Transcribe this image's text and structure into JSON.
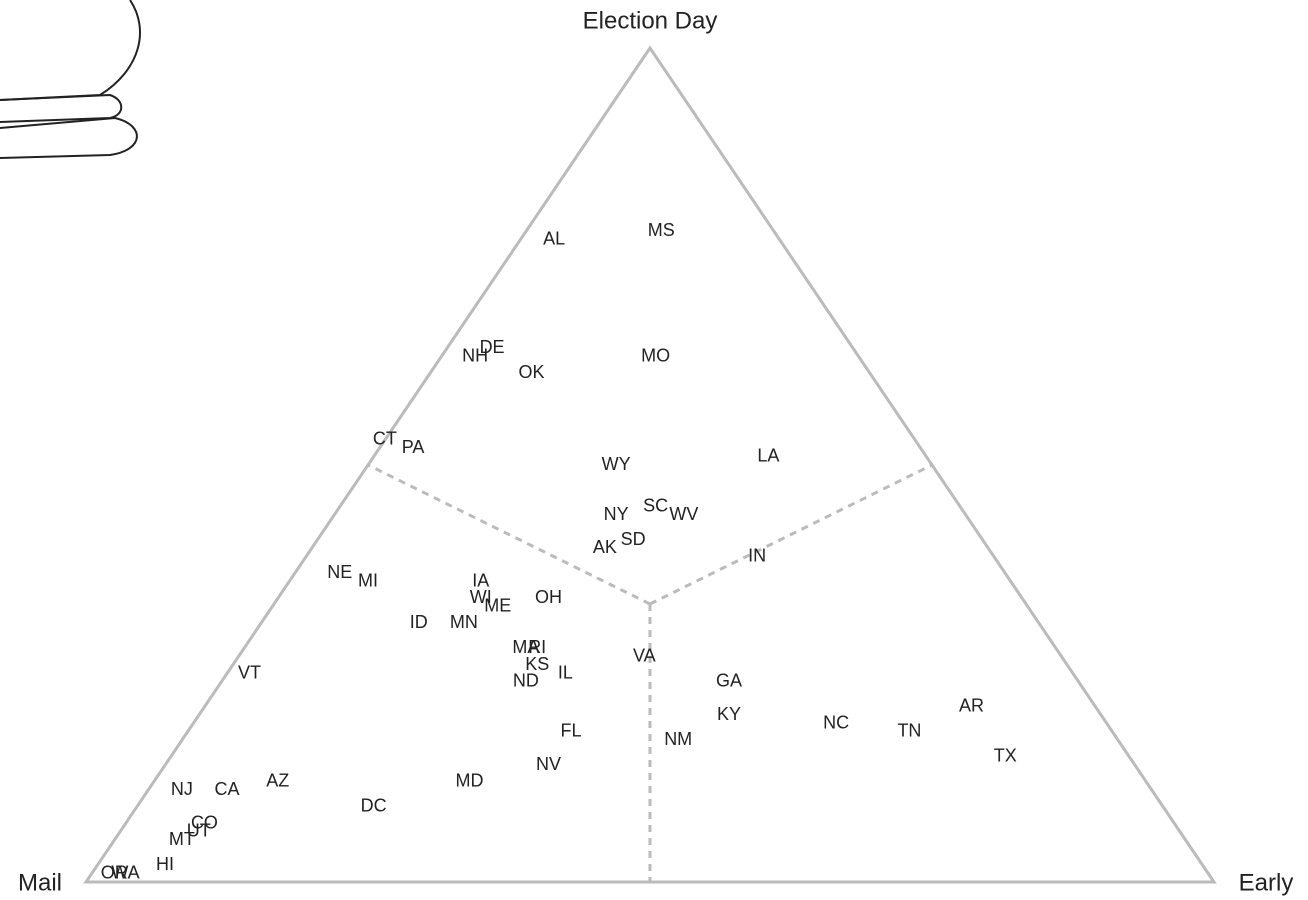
{
  "chart_data": {
    "type": "ternary",
    "categories": [
      "AL",
      "MS",
      "NH",
      "DE",
      "OK",
      "MO",
      "CT",
      "PA",
      "WY",
      "LA",
      "NY",
      "SC",
      "WV",
      "AK",
      "SD",
      "IN",
      "NE",
      "MI",
      "IA",
      "WI",
      "ME",
      "OH",
      "ID",
      "MN",
      "MA",
      "RI",
      "KS",
      "IL",
      "ND",
      "VA",
      "VT",
      "GA",
      "KY",
      "NC",
      "TN",
      "AR",
      "TX",
      "FL",
      "NM",
      "NV",
      "MD",
      "DC",
      "AZ",
      "NJ",
      "CA",
      "CO",
      "MT",
      "UT",
      "HI",
      "OR",
      "WA"
    ],
    "series": [
      {
        "name": "Mail",
        "values": [
          20,
          10,
          34,
          32,
          30,
          18,
          47,
          45,
          28,
          14,
          31,
          27,
          25,
          34,
          31,
          21,
          59,
          57,
          47,
          48,
          47,
          42,
          55,
          51,
          47,
          46,
          47,
          45,
          49,
          37,
          73,
          31,
          33,
          24,
          18,
          11,
          11,
          48,
          39,
          52,
          60,
          70,
          77,
          86,
          82,
          86,
          89,
          87,
          92,
          97,
          96
        ]
      },
      {
        "name": "Early",
        "values": [
          3,
          12,
          3,
          4,
          9,
          19,
          0,
          3,
          22,
          35,
          25,
          28,
          31,
          26,
          28,
          40,
          4,
          7,
          17,
          18,
          20,
          24,
          14,
          18,
          25,
          26,
          27,
          30,
          27,
          36,
          2,
          45,
          47,
          57,
          64,
          68,
          74,
          34,
          44,
          34,
          28,
          21,
          11,
          3,
          7,
          7,
          6,
          7,
          6,
          2,
          3
        ]
      },
      {
        "name": "Election Day",
        "values": [
          77,
          78,
          63,
          64,
          61,
          63,
          53,
          52,
          50,
          51,
          44,
          45,
          44,
          40,
          41,
          39,
          37,
          36,
          36,
          34,
          33,
          34,
          31,
          31,
          28,
          28,
          26,
          25,
          24,
          27,
          25,
          24,
          20,
          19,
          18,
          21,
          15,
          18,
          17,
          14,
          12,
          9,
          12,
          11,
          11,
          7,
          5,
          6,
          2,
          1,
          1
        ]
      }
    ]
  }
}
